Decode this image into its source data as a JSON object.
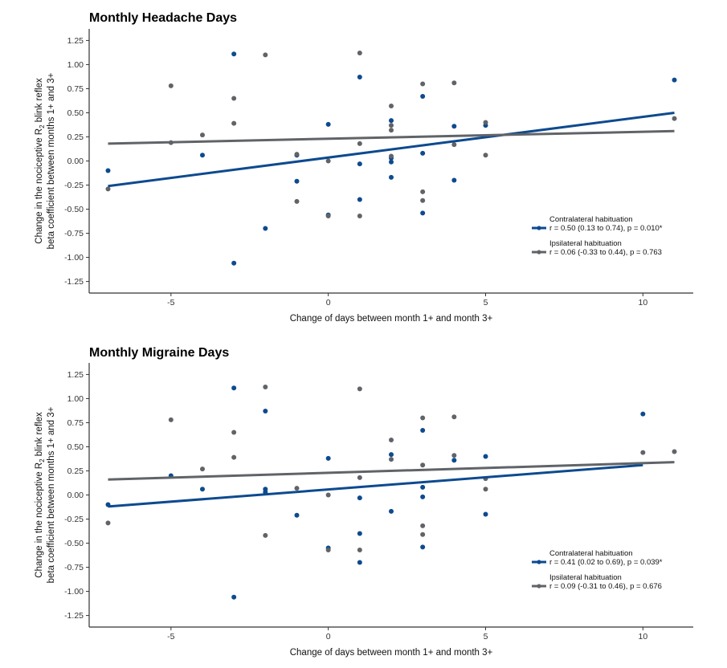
{
  "chart_data": [
    {
      "type": "scatter",
      "title": "Monthly Headache Days",
      "xlabel": "Change of days between month 1+ and month 3+",
      "ylabel_line1": "Change in the nociceptive R",
      "ylabel_sub": "2",
      "ylabel_line1_end": " blink reflex",
      "ylabel_line2": "beta coefficient between months 1+ and 3+",
      "xlim": [
        -7.6,
        11.6
      ],
      "ylim": [
        -1.37,
        1.37
      ],
      "x_ticks": [
        -5,
        0,
        5,
        10
      ],
      "x_tick_labels": [
        "-5",
        "0",
        "5",
        "10"
      ],
      "y_ticks": [
        1.25,
        1.0,
        0.75,
        0.5,
        0.25,
        0.0,
        -0.25,
        -0.5,
        -0.75,
        -1.0,
        -1.25
      ],
      "y_tick_labels": [
        "1.25",
        "1.00",
        "0.75",
        "0.50",
        "0.25",
        "0.00",
        "-0.25",
        "-0.50",
        "-0.75",
        "-1.00",
        "-1.25"
      ],
      "series": [
        {
          "name": "Contralateral habituation",
          "stat": "r = 0.50 (0.13 to 0.74), p = 0.010*",
          "color": "#0d4a8f",
          "fit": {
            "x": [
              -7,
              11
            ],
            "y": [
              -0.26,
              0.5
            ]
          },
          "points": [
            [
              -7,
              -0.1
            ],
            [
              -4,
              0.06
            ],
            [
              -3,
              1.11
            ],
            [
              -3,
              -1.06
            ],
            [
              -2,
              -0.7
            ],
            [
              -1,
              0.06
            ],
            [
              -1,
              -0.21
            ],
            [
              0,
              0.38
            ],
            [
              0,
              -0.56
            ],
            [
              1,
              0.87
            ],
            [
              1,
              -0.03
            ],
            [
              1,
              -0.4
            ],
            [
              2,
              0.42
            ],
            [
              2,
              0.03
            ],
            [
              2,
              -0.01
            ],
            [
              2,
              -0.17
            ],
            [
              3,
              0.67
            ],
            [
              3,
              0.08
            ],
            [
              3,
              -0.54
            ],
            [
              4,
              0.36
            ],
            [
              4,
              -0.2
            ],
            [
              5,
              0.37
            ],
            [
              11,
              0.84
            ]
          ]
        },
        {
          "name": "Ipsilateral habituation",
          "stat": "r = 0.06 (-0.33 to 0.44), p = 0.763",
          "color": "#606468",
          "fit": {
            "x": [
              -7,
              11
            ],
            "y": [
              0.18,
              0.31
            ]
          },
          "points": [
            [
              -7,
              -0.29
            ],
            [
              -5,
              0.78
            ],
            [
              -5,
              0.19
            ],
            [
              -4,
              0.27
            ],
            [
              -3,
              0.65
            ],
            [
              -3,
              0.39
            ],
            [
              -2,
              1.1
            ],
            [
              -1,
              0.07
            ],
            [
              -1,
              -0.42
            ],
            [
              0,
              0.0
            ],
            [
              0,
              -0.57
            ],
            [
              1,
              1.12
            ],
            [
              1,
              0.18
            ],
            [
              1,
              -0.57
            ],
            [
              2,
              0.57
            ],
            [
              2,
              0.37
            ],
            [
              2,
              0.32
            ],
            [
              2,
              0.05
            ],
            [
              3,
              0.8
            ],
            [
              3,
              -0.32
            ],
            [
              3,
              -0.41
            ],
            [
              4,
              0.81
            ],
            [
              4,
              0.17
            ],
            [
              5,
              0.4
            ],
            [
              5,
              0.06
            ],
            [
              11,
              0.44
            ]
          ]
        }
      ]
    },
    {
      "type": "scatter",
      "title": "Monthly Migraine Days",
      "xlabel": "Change of days between month 1+ and month 3+",
      "ylabel_line1": "Change in the nociceptive R",
      "ylabel_sub": "2",
      "ylabel_line1_end": " blink reflex",
      "ylabel_line2": "beta coefficient between months 1+ and 3+",
      "xlim": [
        -7.6,
        11.6
      ],
      "ylim": [
        -1.37,
        1.37
      ],
      "x_ticks": [
        -5,
        0,
        5,
        10
      ],
      "x_tick_labels": [
        "-5",
        "0",
        "5",
        "10"
      ],
      "y_ticks": [
        1.25,
        1.0,
        0.75,
        0.5,
        0.25,
        0.0,
        -0.25,
        -0.5,
        -0.75,
        -1.0,
        -1.25
      ],
      "y_tick_labels": [
        "1.25",
        "1.00",
        "0.75",
        "0.50",
        "0.25",
        "0.00",
        "-0.25",
        "-0.50",
        "-0.75",
        "-1.00",
        "-1.25"
      ],
      "series": [
        {
          "name": "Contralateral habituation",
          "stat": "r = 0.41 (0.02 to 0.69), p = 0.039*",
          "color": "#0d4a8f",
          "fit": {
            "x": [
              -7,
              10
            ],
            "y": [
              -0.12,
              0.31
            ]
          },
          "points": [
            [
              -7,
              -0.1
            ],
            [
              -5,
              0.2
            ],
            [
              -4,
              0.06
            ],
            [
              -3,
              1.11
            ],
            [
              -3,
              -1.06
            ],
            [
              -2,
              0.87
            ],
            [
              -2,
              0.06
            ],
            [
              -2,
              0.03
            ],
            [
              -1,
              -0.21
            ],
            [
              0,
              0.38
            ],
            [
              0,
              -0.55
            ],
            [
              1,
              -0.03
            ],
            [
              1,
              -0.4
            ],
            [
              1,
              -0.7
            ],
            [
              2,
              0.42
            ],
            [
              2,
              -0.17
            ],
            [
              3,
              0.67
            ],
            [
              3,
              0.08
            ],
            [
              3,
              -0.02
            ],
            [
              3,
              -0.54
            ],
            [
              4,
              0.36
            ],
            [
              5,
              0.4
            ],
            [
              5,
              -0.2
            ],
            [
              10,
              0.84
            ]
          ]
        },
        {
          "name": "Ipsilateral habituation",
          "stat": "r = 0.09 (-0.31 to 0.46), p = 0.676",
          "color": "#606468",
          "fit": {
            "x": [
              -7,
              11
            ],
            "y": [
              0.16,
              0.34
            ]
          },
          "points": [
            [
              -7,
              -0.29
            ],
            [
              -5,
              0.78
            ],
            [
              -4,
              0.27
            ],
            [
              -3,
              0.65
            ],
            [
              -3,
              0.39
            ],
            [
              -2,
              1.12
            ],
            [
              -2,
              -0.42
            ],
            [
              -1,
              0.07
            ],
            [
              0,
              0.0
            ],
            [
              0,
              -0.57
            ],
            [
              1,
              1.1
            ],
            [
              1,
              0.18
            ],
            [
              1,
              -0.57
            ],
            [
              2,
              0.57
            ],
            [
              2,
              0.37
            ],
            [
              3,
              0.8
            ],
            [
              3,
              0.31
            ],
            [
              3,
              -0.32
            ],
            [
              3,
              -0.41
            ],
            [
              4,
              0.81
            ],
            [
              4,
              0.41
            ],
            [
              5,
              0.17
            ],
            [
              5,
              0.06
            ],
            [
              10,
              0.44
            ],
            [
              11,
              0.45
            ]
          ]
        }
      ]
    }
  ]
}
